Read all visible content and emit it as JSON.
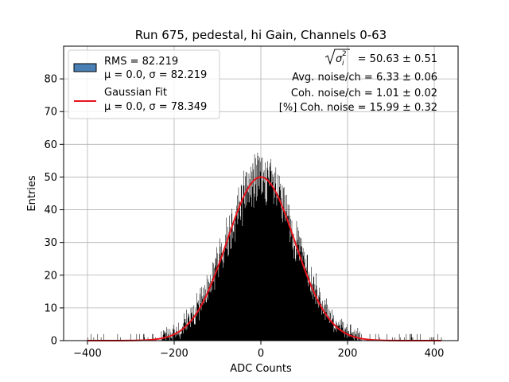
{
  "chart_data": {
    "type": "histogram",
    "title": "Run 675, pedestal, hi Gain, Channels 0-63",
    "xlabel": "ADC Counts",
    "ylabel": "Entries",
    "xlim": [
      -455,
      455
    ],
    "ylim": [
      0,
      90
    ],
    "x_ticks": [
      -400,
      -200,
      0,
      200,
      400
    ],
    "y_ticks": [
      0,
      10,
      20,
      30,
      40,
      50,
      60,
      70,
      80
    ],
    "x_tick_labels": [
      "−400",
      "−200",
      "0",
      "200",
      "400"
    ],
    "y_tick_labels": [
      "0",
      "10",
      "20",
      "30",
      "40",
      "50",
      "60",
      "70",
      "80"
    ],
    "grid": true,
    "legend_position": "top-left",
    "histogram": {
      "name": "RMS = 82.219",
      "label_line2": "μ = 0.0, σ = 82.219",
      "mean": 0.0,
      "sigma": 82.219,
      "bin_width": 1,
      "range": [
        -400,
        417
      ],
      "peak_height": 64,
      "color": "#000000",
      "legend_swatch_color": "#4a7fb5"
    },
    "fit": {
      "name": "Gaussian Fit",
      "label_line2": "μ = 0.0, σ = 78.349",
      "mean": 0.0,
      "sigma": 78.349,
      "amplitude": 50,
      "color": "#e8141c"
    },
    "annotations": {
      "line1_value": "= 50.63 ± 0.51",
      "line2": "Avg. noise/ch = 6.33 ± 0.06",
      "line3": "Coh. noise/ch = 1.01 ± 0.02",
      "line4": "[%] Coh. noise = 15.99 ± 0.32"
    }
  }
}
